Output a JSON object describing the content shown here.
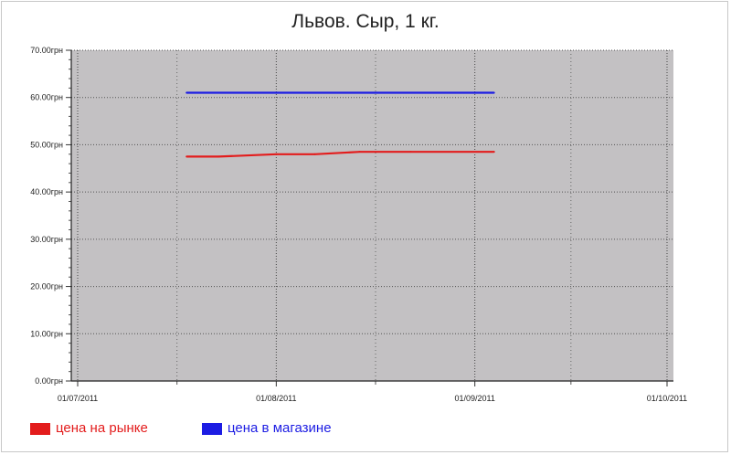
{
  "chart_data": {
    "type": "line",
    "title": "Львов. Сыр, 1 кг.",
    "xlabel": "",
    "ylabel": "",
    "x_range": [
      "2011-06-30",
      "2011-10-02"
    ],
    "x_ticks": [
      "2011-07-01",
      "2011-08-01",
      "2011-09-01",
      "2011-10-01"
    ],
    "x_tick_labels": [
      "01/07/2011",
      "01/08/2011",
      "01/09/2011",
      "01/10/2011"
    ],
    "ylim": [
      0,
      70
    ],
    "y_ticks": [
      0,
      10,
      20,
      30,
      40,
      50,
      60,
      70
    ],
    "y_tick_labels": [
      "0.00грн",
      "10.00грн",
      "20.00грн",
      "30.00грн",
      "40.00грн",
      "50.00грн",
      "60.00грн",
      "70.00грн"
    ],
    "grid": true,
    "legend_position": "bottom-left",
    "plot_background": "#c3c1c3",
    "series": [
      {
        "name": "цена на рынке",
        "color": "#e31c1c",
        "x": [
          "2011-07-18",
          "2011-07-23",
          "2011-08-01",
          "2011-08-07",
          "2011-08-14",
          "2011-08-22",
          "2011-09-04"
        ],
        "y": [
          47.5,
          47.5,
          48.0,
          48.0,
          48.5,
          48.5,
          48.5
        ]
      },
      {
        "name": "цена в магазине",
        "color": "#1c1ce3",
        "x": [
          "2011-07-18",
          "2011-09-04"
        ],
        "y": [
          61.0,
          61.0
        ]
      }
    ]
  }
}
